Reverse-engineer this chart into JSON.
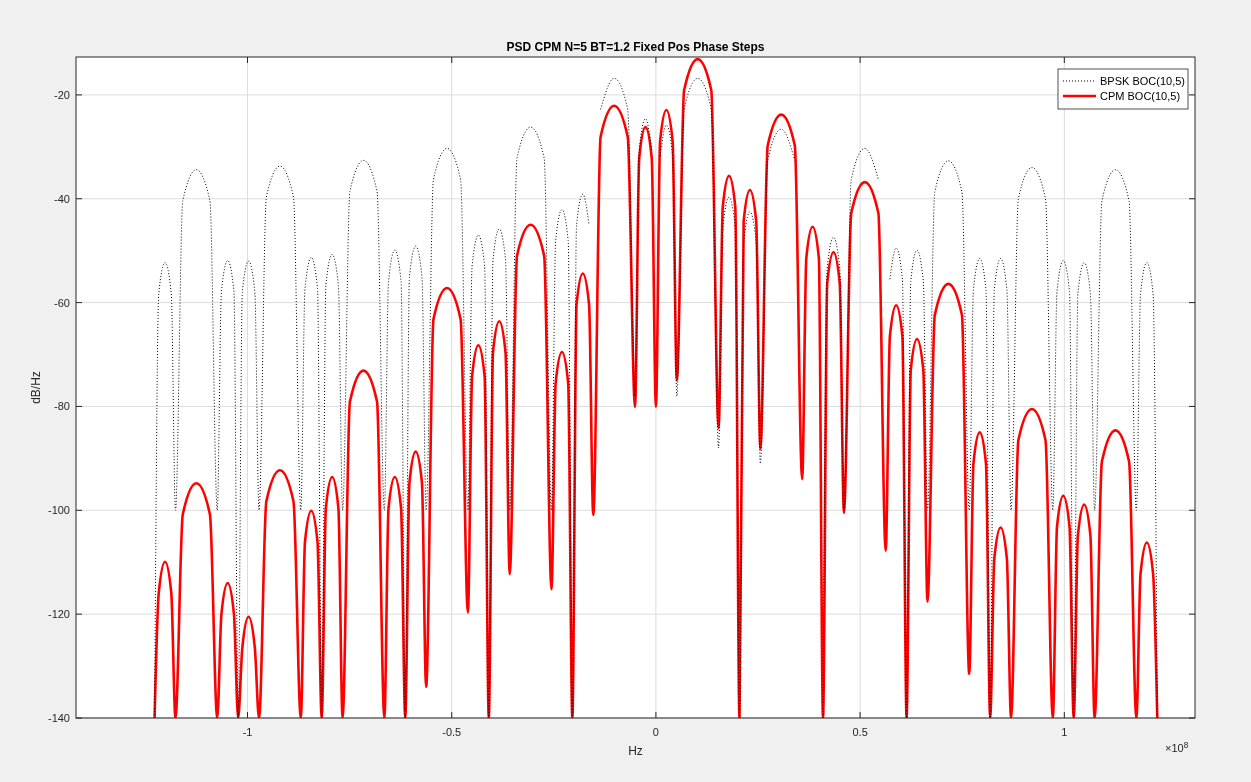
{
  "chart_data": {
    "type": "line",
    "title": "PSD CPM N=5 BT=1.2 Fixed Pos Phase Steps",
    "xlabel": "Hz",
    "ylabel": "dB/Hz",
    "annotations": [
      "×10$^{8}$"
    ],
    "xlim": [
      -1.42,
      1.32
    ],
    "xticks": [
      -1,
      -0.5,
      0,
      0.5,
      1
    ],
    "ylim": [
      -140,
      -12.7
    ],
    "yticks": [
      -140,
      -120,
      -100,
      -80,
      -60,
      -40,
      -20
    ],
    "grid": true,
    "legend": "top right",
    "marker": "none",
    "x": [
      -1.2276,
      -1.21737,
      -1.20203,
      -1.18668,
      -1.17645,
      -1.15855,
      -1.1253,
      -1.09205,
      -1.07415,
      -1.06392,
      -1.04858,
      -1.03323,
      -1.023,
      -1.01277,
      -0.99743,
      -0.98208,
      -0.97185,
      -0.95395,
      -0.9207,
      -0.88745,
      -0.86955,
      -0.85932,
      -0.84398,
      -0.82863,
      -0.8184,
      -0.80817,
      -0.79283,
      -0.77748,
      -0.76725,
      -0.74935,
      -0.7161,
      -0.68285,
      -0.66495,
      -0.65472,
      -0.63938,
      -0.62403,
      -0.6138,
      -0.60357,
      -0.58823,
      -0.57288,
      -0.56265,
      -0.54475,
      -0.5115,
      -0.47825,
      -0.46035,
      -0.45012,
      -0.43478,
      -0.41943,
      -0.4092,
      -0.39897,
      -0.38363,
      -0.36828,
      -0.35805,
      -0.34015,
      -0.3069,
      -0.27365,
      -0.25575,
      -0.24552,
      -0.23018,
      -0.21483,
      -0.2046,
      -0.19437,
      -0.17903,
      -0.16368,
      -0.15345,
      -0.13555,
      -0.1023,
      -0.06905,
      -0.05115,
      -0.04092,
      -0.02558,
      -0.01023,
      0,
      0.01023,
      0.02558,
      0.04092,
      0.05115,
      0.06905,
      0.1023,
      0.13555,
      0.15345,
      0.16368,
      0.17903,
      0.19437,
      0.2046,
      0.21483,
      0.23018,
      0.24552,
      0.25575,
      0.27365,
      0.3069,
      0.34015,
      0.35805,
      0.36828,
      0.38363,
      0.39897,
      0.4092,
      0.41943,
      0.43478,
      0.45012,
      0.46035,
      0.47825,
      0.5115,
      0.54475,
      0.56265,
      0.57288,
      0.58823,
      0.60357,
      0.6138,
      0.62403,
      0.63938,
      0.65472,
      0.66495,
      0.68285,
      0.7161,
      0.74935,
      0.76725,
      0.77748,
      0.79283,
      0.80817,
      0.8184,
      0.82863,
      0.84398,
      0.85932,
      0.86955,
      0.88745,
      0.9207,
      0.95395,
      0.97185,
      0.98208,
      0.99743,
      1.01277,
      1.023,
      1.03323,
      1.04858,
      1.06392,
      1.07415,
      1.09205,
      1.1253,
      1.15855,
      1.17645,
      1.18668,
      1.20203,
      1.21737,
      1.2276
    ],
    "series": [
      {
        "name": "BPSK BOC(10,5)",
        "color": "#000000",
        "line_style": "dotted",
        "values": [
          -140,
          -58.3,
          -52.3,
          -58.3,
          -100,
          -40.4,
          -34.4,
          -40.4,
          -100,
          -57.9,
          -51.9,
          -57.9,
          -140,
          -58,
          -52,
          -58,
          -100,
          -39.7,
          -33.7,
          -39.7,
          -100,
          -57.3,
          -51.3,
          -57.3,
          -140,
          -56.7,
          -50.7,
          -56.7,
          -100,
          -38.6,
          -32.6,
          -38.6,
          -100,
          -55.9,
          -49.9,
          -55.9,
          -140,
          -55.1,
          -49.1,
          -55.1,
          -100,
          -36.3,
          -30.3,
          -36.3,
          -100,
          -53,
          -47,
          -53,
          -140,
          -51.8,
          -45.8,
          -51.8,
          -100,
          -32.2,
          -26.2,
          -32.2,
          -100,
          -48.1,
          -42.1,
          -48.1,
          -140,
          -45.1,
          -39.1,
          -45.1,
          null,
          -22.8,
          -16.8,
          -22.8,
          -78,
          -30.6,
          -24.6,
          -30.6,
          null,
          -31.8,
          -25.8,
          -31.8,
          -78,
          -22.8,
          -16.8,
          -22.8,
          -88,
          -45.7,
          -39.7,
          -45.7,
          -140,
          -48.5,
          -42.5,
          -48.5,
          -91,
          -32.6,
          -26.6,
          -32.6,
          null,
          null,
          null,
          null,
          -140,
          -53.4,
          -47.4,
          -53.4,
          -100,
          -36.3,
          -30.3,
          -36.3,
          null,
          -55.5,
          -49.5,
          -55.5,
          -140,
          -55.9,
          -49.9,
          -55.9,
          -100,
          -38.7,
          -32.7,
          -38.7,
          -100,
          -57.5,
          -51.5,
          -57.5,
          -140,
          -57.5,
          -51.5,
          -57.5,
          -100,
          -40,
          -34,
          -40,
          -100,
          -57.9,
          -51.9,
          -57.9,
          -140,
          -58.3,
          -52.3,
          -58.3,
          -100,
          -40.4,
          -34.4,
          -40.4,
          -100,
          -58.3,
          -52.3,
          -58.3,
          -140
        ]
      },
      {
        "name": "CPM BOC(10,5)",
        "color": "#ff0000",
        "line_style": "solid",
        "values": [
          -140,
          -115.9,
          -109.9,
          -115.9,
          -140,
          -100.8,
          -94.8,
          -100.8,
          -140,
          -120,
          -114,
          -120,
          -140,
          -126.5,
          -120.5,
          -126.5,
          -140,
          -98.3,
          -92.3,
          -98.3,
          -140,
          -106.1,
          -100.1,
          -106.1,
          -140,
          -99.6,
          -93.6,
          -99.6,
          -140,
          -79.1,
          -73.1,
          -79.1,
          -140,
          -99.6,
          -93.6,
          -99.6,
          -140,
          -94.7,
          -88.7,
          -94.7,
          -134,
          -63.2,
          -57.2,
          -63.2,
          -119.7,
          -74.2,
          -68.2,
          -74.2,
          -140,
          -69.6,
          -63.6,
          -69.6,
          -112.3,
          -51,
          -45,
          -51,
          -115.2,
          -75.5,
          -69.5,
          -75.5,
          -140,
          -60.4,
          -54.4,
          -60.4,
          -100.9,
          -28.1,
          -22.1,
          -28.1,
          -80.1,
          -32.2,
          -26.2,
          -32.2,
          -80.1,
          -28.9,
          -22.9,
          -28.9,
          -75,
          -19.1,
          -13.1,
          -19.1,
          -84.2,
          -41.6,
          -35.6,
          -41.6,
          -140,
          -44.3,
          -38.3,
          -44.3,
          -88.2,
          -29.8,
          -23.8,
          -29.8,
          -94,
          -51.4,
          -45.4,
          -51.4,
          -140,
          -56.3,
          -50.3,
          -56.3,
          -100.5,
          -42.8,
          -36.8,
          -42.8,
          -107.8,
          -66.5,
          -60.5,
          -66.5,
          -140,
          -73,
          -67,
          -73,
          -117.6,
          -62.4,
          -56.4,
          -62.4,
          -131.5,
          -91,
          -85,
          -91,
          -140,
          -109.3,
          -103.3,
          -109.3,
          -140,
          -86.5,
          -80.5,
          -86.5,
          -140,
          -103.2,
          -97.2,
          -103.2,
          -140,
          -104.9,
          -98.9,
          -104.9,
          -140,
          -90.6,
          -84.6,
          -90.6,
          -140,
          -112.2,
          -106.2,
          -112.2,
          -140
        ]
      }
    ]
  }
}
